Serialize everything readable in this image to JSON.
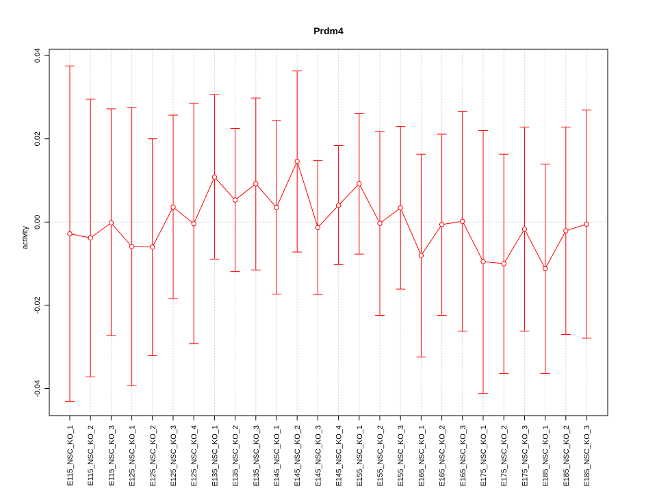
{
  "chart_data": {
    "type": "line",
    "title": "Prdm4",
    "xlabel": "",
    "ylabel": "activity",
    "ylim": [
      -0.0465,
      0.0415
    ],
    "y_ticks": [
      -0.04,
      -0.02,
      0.0,
      0.02,
      0.04
    ],
    "y_tick_labels": [
      "-0.04",
      "-0.02",
      "0.00",
      "0.02",
      "0.04"
    ],
    "grid": true,
    "reference_line": 0.0,
    "colors": {
      "series": "#ff0000",
      "grid": "#d3d3d3",
      "axis": "#000000"
    },
    "categories": [
      "E115_NSC_KO_1",
      "E115_NSC_KO_2",
      "E115_NSC_KO_3",
      "E125_NSC_KO_1",
      "E125_NSC_KO_2",
      "E125_NSC_KO_3",
      "E125_NSC_KO_4",
      "E135_NSC_KO_1",
      "E135_NSC_KO_2",
      "E135_NSC_KO_3",
      "E145_NSC_KO_1",
      "E145_NSC_KO_2",
      "E145_NSC_KO_3",
      "E145_NSC_KO_4",
      "E155_NSC_KO_1",
      "E155_NSC_KO_2",
      "E155_NSC_KO_3",
      "E165_NSC_KO_1",
      "E165_NSC_KO_2",
      "E165_NSC_KO_3",
      "E175_NSC_KO_1",
      "E175_NSC_KO_2",
      "E175_NSC_KO_3",
      "E185_NSC_KO_1",
      "E185_NSC_KO_2",
      "E185_NSC_KO_3"
    ],
    "values": [
      -0.0028,
      -0.0038,
      -0.0002,
      -0.0059,
      -0.006,
      0.0036,
      -0.0004,
      0.0108,
      0.0053,
      0.0092,
      0.0035,
      0.0146,
      -0.0013,
      0.004,
      0.0092,
      -0.0003,
      0.0034,
      -0.008,
      -0.0006,
      0.0002,
      -0.0095,
      -0.01,
      -0.0017,
      -0.0112,
      -0.0021,
      -0.0005
    ],
    "upper": [
      0.0375,
      0.0295,
      0.0272,
      0.0275,
      0.02,
      0.0257,
      0.0285,
      0.0306,
      0.0225,
      0.0298,
      0.0244,
      0.0363,
      0.0148,
      0.0184,
      0.0261,
      0.0217,
      0.023,
      0.0163,
      0.0211,
      0.0266,
      0.022,
      0.0163,
      0.0228,
      0.0139,
      0.0228,
      0.0269
    ],
    "lower": [
      -0.0431,
      -0.0372,
      -0.0273,
      -0.0393,
      -0.0321,
      -0.0184,
      -0.0292,
      -0.0089,
      -0.0119,
      -0.0115,
      -0.0173,
      -0.0072,
      -0.0174,
      -0.0102,
      -0.0077,
      -0.0224,
      -0.0161,
      -0.0324,
      -0.0224,
      -0.0262,
      -0.0412,
      -0.0364,
      -0.0262,
      -0.0364,
      -0.027,
      -0.0279
    ]
  }
}
